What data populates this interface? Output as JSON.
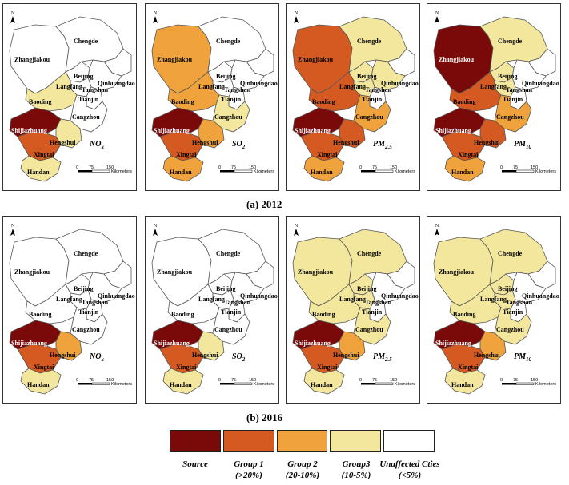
{
  "colors": {
    "source": "#7a0a0a",
    "group1": "#d45a22",
    "group2": "#f0a33c",
    "group3": "#f2e79d",
    "none": "#ffffff"
  },
  "legend": [
    {
      "id": "source",
      "label_1": "Source",
      "label_2": ""
    },
    {
      "id": "group1",
      "label_1": "Group 1",
      "label_2": "(>20%)"
    },
    {
      "id": "group2",
      "label_1": "Group 2",
      "label_2": "(20-10%)"
    },
    {
      "id": "group3",
      "label_1": "Group3",
      "label_2": "(10-5%)"
    },
    {
      "id": "none",
      "label_1": "Unaffected Cties",
      "label_2": "(<5%)"
    }
  ],
  "captions": {
    "y2012": "(a)  2012",
    "y2016": "(b)  2016"
  },
  "scale": {
    "t0": "0",
    "t1": "75",
    "t2": "150",
    "unit": "Kilometers"
  },
  "north": "N",
  "city_names": {
    "zhangjiakou": "Zhangjiakou",
    "chengde": "Chengde",
    "beijing": "Beijing",
    "langfang": "Langfang",
    "tangshan": "Tangshan",
    "qinhuangdao": "Qinhuangdao",
    "tianjin": "Tianjin",
    "baoding": "Baoding",
    "cangzhou": "Cangzhou",
    "shijiazhuang": "Shijiazhuang",
    "hengshui": "Hengshui",
    "xingtai": "Xingtai",
    "handan": "Handan"
  },
  "panels": [
    {
      "pollutant": "NO",
      "sub": "x",
      "year": "2012",
      "classes": {
        "zhangjiakou": "none",
        "chengde": "none",
        "beijing": "none",
        "langfang": "none",
        "tianjin": "none",
        "tangshan": "none",
        "qinhuangdao": "none",
        "baoding": "group3",
        "cangzhou": "none",
        "shijiazhuang": "source",
        "hengshui": "group3",
        "xingtai": "group1",
        "handan": "group3"
      }
    },
    {
      "pollutant": "SO",
      "sub": "2",
      "year": "2012",
      "classes": {
        "zhangjiakou": "group2",
        "chengde": "none",
        "beijing": "none",
        "langfang": "none",
        "tianjin": "none",
        "tangshan": "none",
        "qinhuangdao": "none",
        "baoding": "group2",
        "cangzhou": "group3",
        "shijiazhuang": "source",
        "hengshui": "group2",
        "xingtai": "group1",
        "handan": "group2"
      }
    },
    {
      "pollutant": "PM",
      "sub": "2.5",
      "year": "2012",
      "classes": {
        "zhangjiakou": "group1",
        "chengde": "group3",
        "beijing": "group3",
        "langfang": "group3",
        "tianjin": "none",
        "tangshan": "group3",
        "qinhuangdao": "none",
        "baoding": "group1",
        "cangzhou": "group2",
        "shijiazhuang": "source",
        "hengshui": "group1",
        "xingtai": "group1",
        "handan": "group2"
      }
    },
    {
      "pollutant": "PM",
      "sub": "10",
      "year": "2012",
      "classes": {
        "zhangjiakou": "source",
        "chengde": "group3",
        "beijing": "group3",
        "langfang": "group3",
        "tianjin": "none",
        "tangshan": "none",
        "qinhuangdao": "none",
        "baoding": "group1",
        "cangzhou": "group2",
        "shijiazhuang": "source",
        "hengshui": "group1",
        "xingtai": "group1",
        "handan": "group2"
      }
    },
    {
      "pollutant": "NO",
      "sub": "x",
      "year": "2016",
      "classes": {
        "zhangjiakou": "none",
        "chengde": "none",
        "beijing": "none",
        "langfang": "none",
        "tianjin": "none",
        "tangshan": "none",
        "qinhuangdao": "none",
        "baoding": "none",
        "cangzhou": "none",
        "shijiazhuang": "source",
        "hengshui": "group2",
        "xingtai": "group1",
        "handan": "group3"
      }
    },
    {
      "pollutant": "SO",
      "sub": "2",
      "year": "2016",
      "classes": {
        "zhangjiakou": "none",
        "chengde": "none",
        "beijing": "none",
        "langfang": "none",
        "tianjin": "none",
        "tangshan": "none",
        "qinhuangdao": "none",
        "baoding": "none",
        "cangzhou": "none",
        "shijiazhuang": "source",
        "hengshui": "group3",
        "xingtai": "group1",
        "handan": "group3"
      }
    },
    {
      "pollutant": "PM",
      "sub": "2.5",
      "year": "2016",
      "classes": {
        "zhangjiakou": "group3",
        "chengde": "group3",
        "beijing": "group3",
        "langfang": "group3",
        "tianjin": "none",
        "tangshan": "none",
        "qinhuangdao": "none",
        "baoding": "group3",
        "cangzhou": "group3",
        "shijiazhuang": "source",
        "hengshui": "group2",
        "xingtai": "group1",
        "handan": "group3"
      }
    },
    {
      "pollutant": "PM",
      "sub": "10",
      "year": "2016",
      "classes": {
        "zhangjiakou": "group3",
        "chengde": "group3",
        "beijing": "group3",
        "langfang": "group3",
        "tianjin": "none",
        "tangshan": "none",
        "qinhuangdao": "none",
        "baoding": "group3",
        "cangzhou": "group3",
        "shijiazhuang": "source",
        "hengshui": "group2",
        "xingtai": "group1",
        "handan": "group3"
      }
    }
  ]
}
